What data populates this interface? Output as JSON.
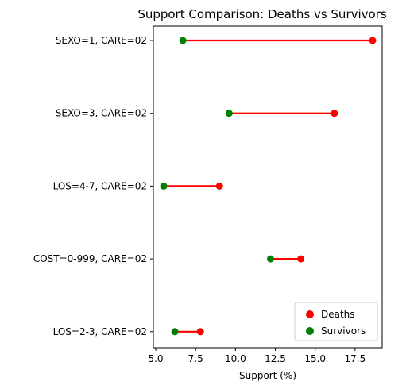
{
  "chart_data": {
    "type": "dumbbell",
    "title": "Support Comparison: Deaths vs Survivors",
    "xlabel": "Support (%)",
    "ylabel": "",
    "xlim": [
      4.85,
      19.2
    ],
    "xticks": [
      5.0,
      7.5,
      10.0,
      12.5,
      15.0,
      17.5
    ],
    "xtick_labels": [
      "5.0",
      "7.5",
      "10.0",
      "12.5",
      "15.0",
      "17.5"
    ],
    "grid": false,
    "legend_position": "lower-right",
    "categories": [
      "SEXO=1, CARE=02",
      "SEXO=3, CARE=02",
      "LOS=4-7, CARE=02",
      "COST=0-999, CARE=02",
      "LOS=2-3, CARE=02"
    ],
    "series": [
      {
        "name": "Deaths",
        "color": "#ff0000",
        "values": [
          18.6,
          16.2,
          9.0,
          14.1,
          7.8
        ]
      },
      {
        "name": "Survivors",
        "color": "#008000",
        "values": [
          6.7,
          9.6,
          5.5,
          12.2,
          6.2
        ]
      }
    ],
    "connector_color": "#ff0000"
  }
}
